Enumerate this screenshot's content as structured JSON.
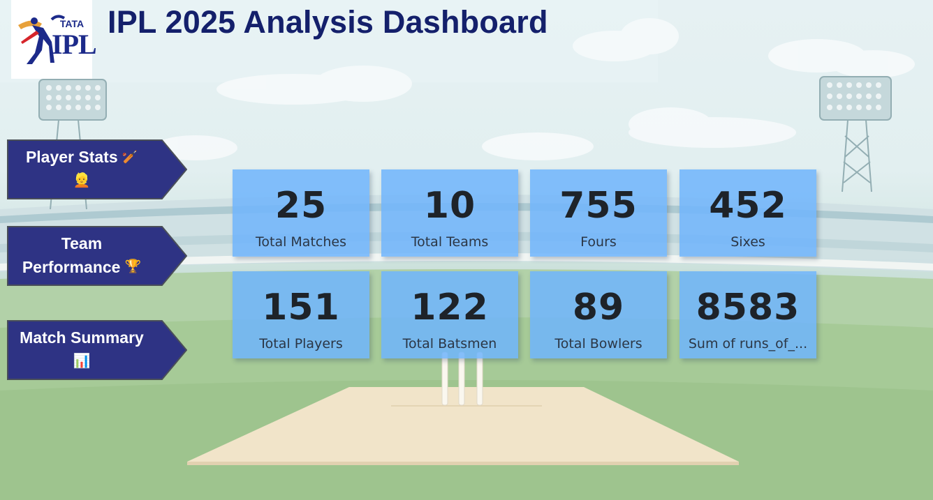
{
  "header": {
    "title": "IPL 2025 Analysis Dashboard",
    "logo_top_text": "TATA",
    "logo_main_text": "IPL"
  },
  "nav": {
    "player_stats": {
      "line1": "Player Stats",
      "line1_emoji": "🏏",
      "line2_emoji": "👱"
    },
    "team_performance": {
      "line1": "Team",
      "line2": "Performance",
      "line2_emoji": "🏆"
    },
    "match_summary": {
      "line1": "Match Summary",
      "line2_emoji": "📊"
    }
  },
  "kpis": [
    {
      "value": "25",
      "label": "Total Matches"
    },
    {
      "value": "10",
      "label": "Total Teams"
    },
    {
      "value": "755",
      "label": "Fours"
    },
    {
      "value": "452",
      "label": "Sixes"
    },
    {
      "value": "151",
      "label": "Total Players"
    },
    {
      "value": "122",
      "label": "Total Batsmen"
    },
    {
      "value": "89",
      "label": "Total Bowlers"
    },
    {
      "value": "8583",
      "label": "Sum of runs_of_..."
    }
  ],
  "colors": {
    "title": "#14206b",
    "nav_fill": "#2e3384",
    "nav_border": "#4a4f58",
    "card_fill": "#70b4fc",
    "value_text": "#1e2329"
  }
}
